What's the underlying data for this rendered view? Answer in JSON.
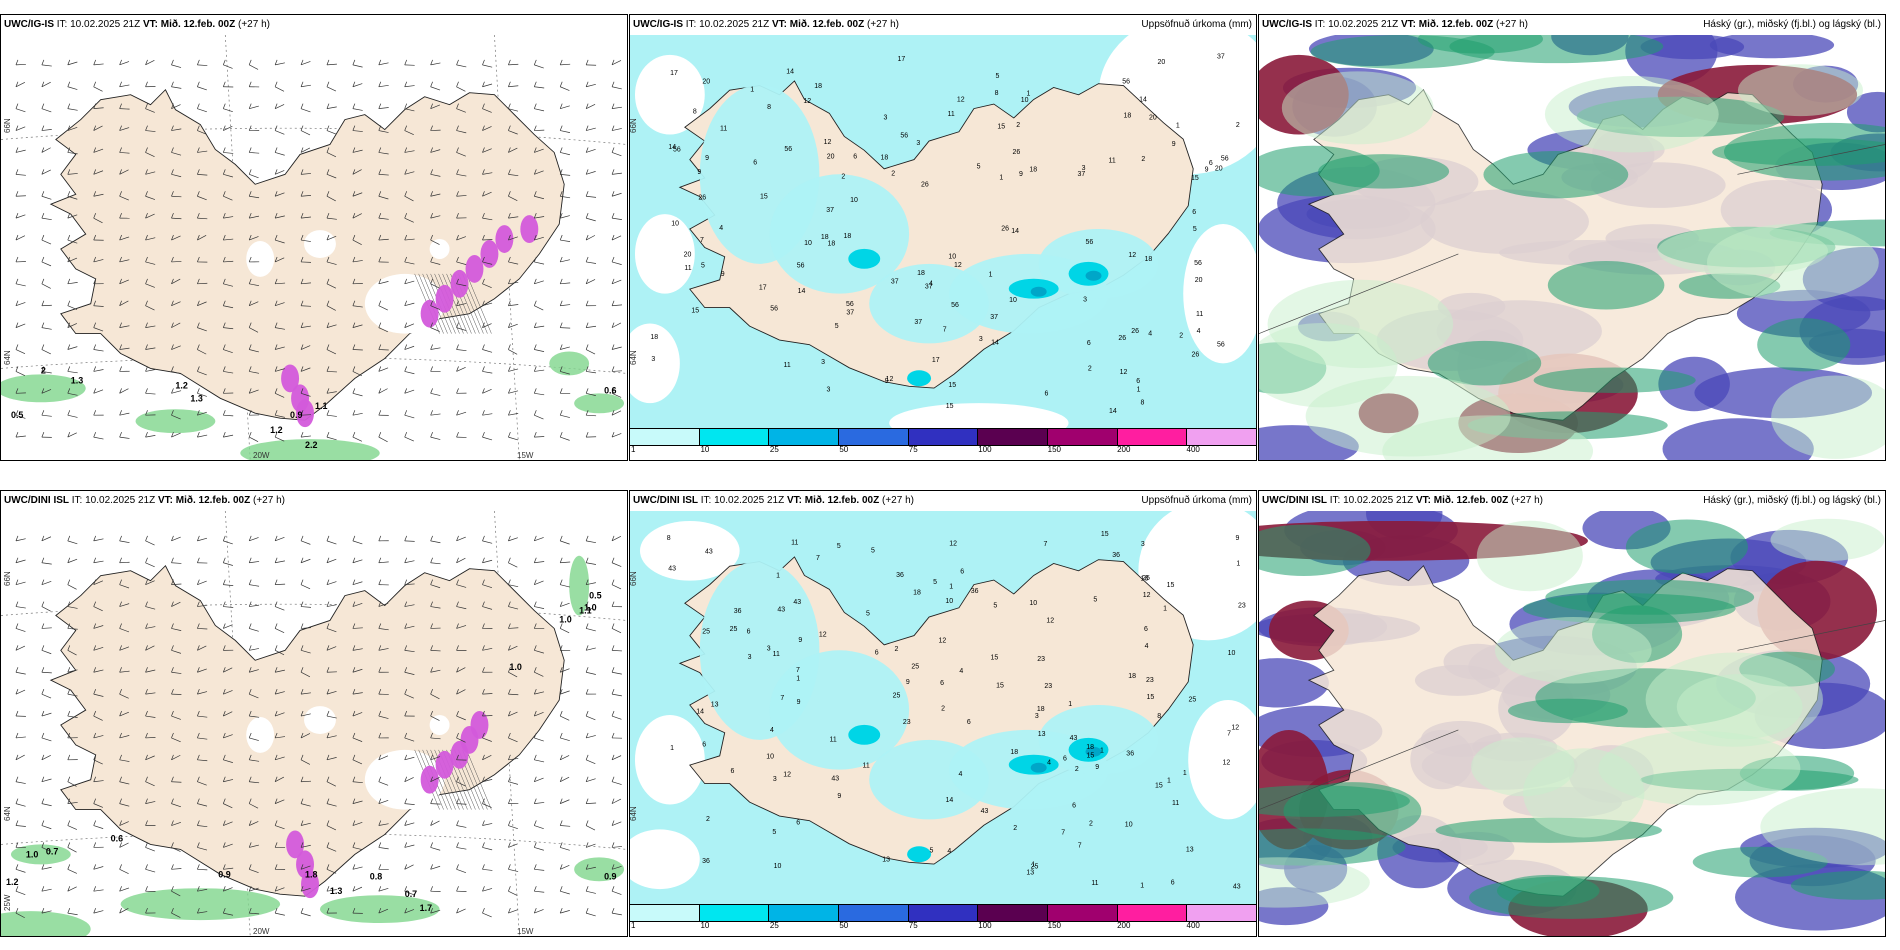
{
  "panels": {
    "p1": {
      "model": "UWC/IG-IS",
      "run": "IT: 10.02.2025 21Z",
      "vt_label": "VT:",
      "vt": "Mið. 12.feb. 00Z",
      "lead": "(+27 h)",
      "right": ""
    },
    "p2": {
      "model": "UWC/IG-IS",
      "run": "IT: 10.02.2025 21Z",
      "vt_label": "VT:",
      "vt": "Mið. 12.feb. 00Z",
      "lead": "(+27 h)",
      "right": "Uppsöfnuð úrkoma (mm)"
    },
    "p3": {
      "model": "UWC/IG-IS",
      "run": "IT: 10.02.2025 21Z",
      "vt_label": "VT:",
      "vt": "Mið. 12.feb. 00Z",
      "lead": "(+27 h)",
      "right": "Háský (gr.), miðský (fj.bl.) og lágský (bl.)"
    },
    "p4": {
      "model": "UWC/DINI ISL",
      "run": "IT: 10.02.2025 21Z",
      "vt_label": "VT:",
      "vt": "Mið. 12.feb. 00Z",
      "lead": "(+27 h)",
      "right": ""
    },
    "p5": {
      "model": "UWC/DINI ISL",
      "run": "IT: 10.02.2025 21Z",
      "vt_label": "VT:",
      "vt": "Mið. 12.feb. 00Z",
      "lead": "(+27 h)",
      "right": "Uppsöfnuð úrkoma (mm)"
    },
    "p6": {
      "model": "UWC/DINI ISL",
      "run": "IT: 10.02.2025 21Z",
      "vt_label": "VT:",
      "vt": "Mið. 12.feb. 00Z",
      "lead": "(+27 h)",
      "right": "Háský (gr.), miðský (fj.bl.) og lágský (bl.)"
    }
  },
  "axis_labels": {
    "lat_66": "66N",
    "lat_64": "64N",
    "lon_20": "20W",
    "lon_15": "15W",
    "lon_25": "25W"
  },
  "colorbar": {
    "ticks": [
      "1",
      "10",
      "25",
      "50",
      "75",
      "100",
      "150",
      "200",
      "400",
      ""
    ],
    "colors": [
      "#c8fafa",
      "#00e6f0",
      "#00b4e6",
      "#2a6ae0",
      "#3030c0",
      "#5a0050",
      "#a0006e",
      "#ff1ea0",
      "#f0a0f0"
    ]
  },
  "colors": {
    "land": "#f6e7d6",
    "precip_light": "#aef2f5",
    "precip_mid": "#00d5e6",
    "precip_strong": "#00a6c8",
    "snow_magenta": "#d35adb",
    "wind_green": "#7fd68c",
    "high_cloud_green": "#1f9e6e",
    "mid_cloud_blue": "#4a48b8",
    "low_cloud_red": "#8a1a3a"
  },
  "wind_labels_top": [
    "2",
    "1.3",
    "1.2",
    "1.3",
    "0.5",
    "1.2",
    "2.2",
    "0.6",
    "0.9",
    "1.1"
  ],
  "wind_labels_bottom": [
    "1.0",
    "0.7",
    "1.2",
    "0.6",
    "0.9",
    "1.8",
    "1.3",
    "0.8",
    "0.7",
    "1.7",
    "0.9",
    "1.0",
    "0.5",
    "1.1",
    "1.0",
    "1.0"
  ],
  "precip_numbers_top": [
    "2",
    "3",
    "5",
    "1",
    "4",
    "6",
    "7",
    "11",
    "12",
    "18",
    "17",
    "14",
    "15",
    "20",
    "26",
    "37",
    "56",
    "10",
    "8",
    "9"
  ],
  "precip_numbers_bottom": [
    "2",
    "3",
    "4",
    "5",
    "1",
    "6",
    "7",
    "8",
    "9",
    "11",
    "13",
    "14",
    "12",
    "15",
    "18",
    "25",
    "23",
    "10",
    "43",
    "36"
  ]
}
